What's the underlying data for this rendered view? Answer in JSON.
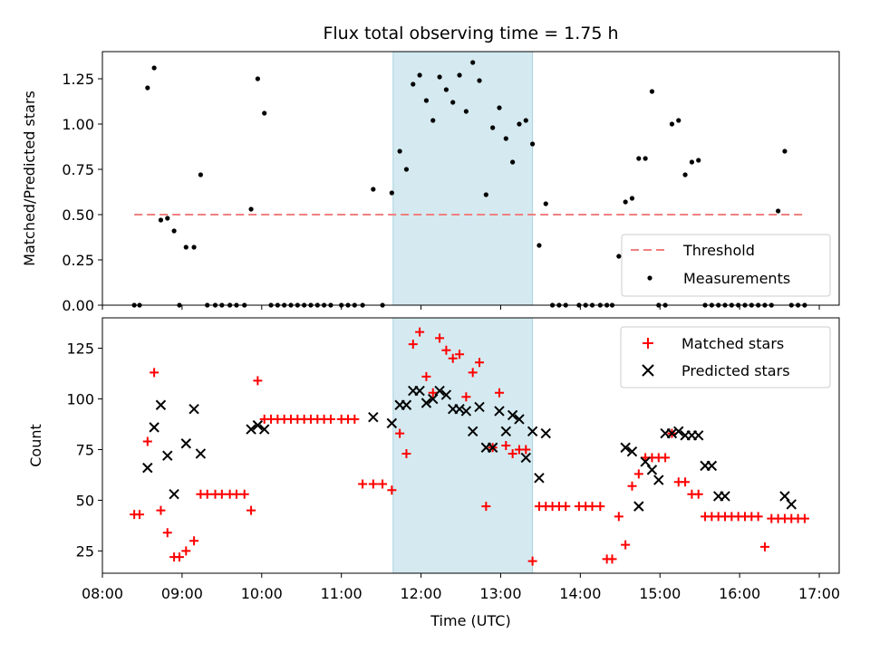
{
  "chart_data": [
    {
      "type": "scatter",
      "title": "Flux total observing time = 1.75 h",
      "ylabel": "Matched/Predicted stars",
      "xlim": [
        "08:00",
        "17:15"
      ],
      "ylim": [
        0,
        1.4
      ],
      "yticks": [
        "0.00",
        "0.25",
        "0.50",
        "0.75",
        "1.00",
        "1.25"
      ],
      "grid": false,
      "legend_position": "lower-right",
      "shaded_interval": {
        "start": "11:39",
        "end": "13:24",
        "color": "#d4eaf0"
      },
      "series": [
        {
          "name": "Threshold",
          "style": "dashed-line",
          "color": "#f08080",
          "x": [
            "08:24",
            "16:50"
          ],
          "y": [
            0.5,
            0.5
          ]
        },
        {
          "name": "Measurements",
          "style": "dot",
          "color": "#000000",
          "x": [
            "08:24",
            "08:28",
            "08:34",
            "08:39",
            "08:44",
            "08:49",
            "08:54",
            "08:58",
            "09:03",
            "09:09",
            "09:14",
            "09:19",
            "09:25",
            "09:30",
            "09:36",
            "09:41",
            "09:47",
            "09:52",
            "09:57",
            "10:02",
            "10:07",
            "10:12",
            "10:17",
            "10:22",
            "10:27",
            "10:32",
            "10:37",
            "10:42",
            "10:47",
            "10:52",
            "11:00",
            "11:05",
            "11:10",
            "11:16",
            "11:24",
            "11:31",
            "11:38",
            "11:44",
            "11:49",
            "11:54",
            "11:59",
            "12:04",
            "12:09",
            "12:14",
            "12:19",
            "12:24",
            "12:29",
            "12:34",
            "12:39",
            "12:44",
            "12:49",
            "12:54",
            "12:59",
            "13:04",
            "13:09",
            "13:14",
            "13:19",
            "13:24",
            "13:29",
            "13:34",
            "13:39",
            "13:44",
            "13:49",
            "13:59",
            "14:04",
            "14:09",
            "14:15",
            "14:20",
            "14:24",
            "14:29",
            "14:34",
            "14:39",
            "14:44",
            "14:49",
            "14:54",
            "14:59",
            "15:04",
            "15:09",
            "15:14",
            "15:19",
            "15:24",
            "15:29",
            "15:34",
            "15:39",
            "15:44",
            "15:49",
            "15:54",
            "15:59",
            "16:04",
            "16:09",
            "16:14",
            "16:19",
            "16:24",
            "16:29",
            "16:34",
            "16:39",
            "16:44",
            "16:49"
          ],
          "y": [
            0,
            0,
            1.2,
            1.31,
            0.47,
            0.48,
            0.41,
            0,
            0.32,
            0.32,
            0.72,
            0,
            0,
            0,
            0,
            0,
            0,
            0.53,
            1.25,
            1.06,
            0,
            0,
            0,
            0,
            0,
            0,
            0,
            0,
            0,
            0,
            0,
            0,
            0,
            0,
            0.64,
            0,
            0.62,
            0.85,
            0.75,
            1.22,
            1.27,
            1.13,
            1.02,
            1.26,
            1.19,
            1.12,
            1.27,
            1.07,
            1.34,
            1.24,
            0.61,
            0.98,
            1.09,
            0.92,
            0.79,
            1,
            1.02,
            0.89,
            0.33,
            0.56,
            0,
            0,
            0,
            0,
            0,
            0,
            0,
            0,
            0,
            0.27,
            0.57,
            0.59,
            0.81,
            0.81,
            1.18,
            0,
            0,
            1,
            1.02,
            0.72,
            0.79,
            0.8,
            0,
            0,
            0,
            0,
            0,
            0,
            0,
            0,
            0,
            0,
            0,
            0.52,
            0.85,
            0,
            0,
            0
          ]
        }
      ]
    },
    {
      "type": "scatter",
      "xlabel": "Time (UTC)",
      "ylabel": "Count",
      "xlim": [
        "08:00",
        "17:15"
      ],
      "ylim": [
        14,
        140
      ],
      "xticks": [
        "08:00",
        "09:00",
        "10:00",
        "11:00",
        "12:00",
        "13:00",
        "14:00",
        "15:00",
        "16:00",
        "17:00"
      ],
      "yticks": [
        "25",
        "50",
        "75",
        "100",
        "125"
      ],
      "grid": false,
      "legend_position": "upper-right",
      "shaded_interval": {
        "start": "11:39",
        "end": "13:24",
        "color": "#d4eaf0"
      },
      "series": [
        {
          "name": "Matched stars",
          "marker": "plus",
          "color": "#ff0000",
          "x": [
            "08:24",
            "08:28",
            "08:34",
            "08:39",
            "08:44",
            "08:49",
            "08:54",
            "08:58",
            "09:03",
            "09:09",
            "09:14",
            "09:19",
            "09:25",
            "09:30",
            "09:36",
            "09:41",
            "09:47",
            "09:52",
            "09:57",
            "10:02",
            "10:07",
            "10:12",
            "10:17",
            "10:22",
            "10:27",
            "10:32",
            "10:37",
            "10:42",
            "10:47",
            "10:52",
            "11:00",
            "11:05",
            "11:10",
            "11:16",
            "11:24",
            "11:31",
            "11:38",
            "11:44",
            "11:49",
            "11:54",
            "11:59",
            "12:04",
            "12:09",
            "12:14",
            "12:19",
            "12:24",
            "12:29",
            "12:34",
            "12:39",
            "12:44",
            "12:49",
            "12:54",
            "12:59",
            "13:04",
            "13:09",
            "13:14",
            "13:19",
            "13:24",
            "13:29",
            "13:34",
            "13:39",
            "13:44",
            "13:49",
            "13:59",
            "14:04",
            "14:09",
            "14:15",
            "14:20",
            "14:24",
            "14:29",
            "14:34",
            "14:39",
            "14:44",
            "14:49",
            "14:54",
            "14:59",
            "15:04",
            "15:09",
            "15:14",
            "15:19",
            "15:24",
            "15:29",
            "15:34",
            "15:39",
            "15:44",
            "15:49",
            "15:54",
            "15:59",
            "16:04",
            "16:09",
            "16:14",
            "16:19",
            "16:24",
            "16:29",
            "16:34",
            "16:39",
            "16:44",
            "16:49"
          ],
          "y": [
            43,
            43,
            79,
            113,
            45,
            34,
            22,
            22,
            25,
            30,
            53,
            53,
            53,
            53,
            53,
            53,
            53,
            45,
            109,
            90,
            90,
            90,
            90,
            90,
            90,
            90,
            90,
            90,
            90,
            90,
            90,
            90,
            90,
            58,
            58,
            58,
            55,
            83,
            73,
            127,
            133,
            111,
            103,
            130,
            124,
            120,
            122,
            101,
            113,
            118,
            47,
            76,
            103,
            77,
            73,
            75,
            75,
            20,
            47,
            47,
            47,
            47,
            47,
            47,
            47,
            47,
            47,
            21,
            21,
            42,
            28,
            57,
            63,
            71,
            71,
            71,
            71,
            83,
            59,
            59,
            53,
            53,
            42,
            42,
            42,
            42,
            42,
            42,
            42,
            42,
            42,
            27,
            41,
            41,
            41,
            41,
            41,
            41
          ]
        },
        {
          "name": "Predicted stars",
          "marker": "x",
          "color": "#000000",
          "x": [
            "08:34",
            "08:39",
            "08:44",
            "08:49",
            "08:54",
            "09:03",
            "09:09",
            "09:14",
            "09:52",
            "09:57",
            "10:02",
            "11:24",
            "11:38",
            "11:44",
            "11:49",
            "11:54",
            "11:59",
            "12:04",
            "12:09",
            "12:14",
            "12:19",
            "12:24",
            "12:29",
            "12:34",
            "12:39",
            "12:44",
            "12:49",
            "12:54",
            "12:59",
            "13:04",
            "13:09",
            "13:14",
            "13:19",
            "13:24",
            "13:29",
            "13:34",
            "14:34",
            "14:39",
            "14:44",
            "14:49",
            "14:54",
            "14:59",
            "15:04",
            "15:09",
            "15:14",
            "15:19",
            "15:24",
            "15:29",
            "15:34",
            "15:39",
            "15:44",
            "15:49",
            "16:34",
            "16:39"
          ],
          "y": [
            66,
            86,
            97,
            72,
            53,
            78,
            95,
            73,
            85,
            87,
            85,
            91,
            88,
            97,
            97,
            104,
            104,
            98,
            100,
            104,
            102,
            95,
            95,
            94,
            84,
            96,
            76,
            76,
            94,
            84,
            92,
            90,
            71,
            84,
            61,
            83,
            76,
            74,
            47,
            69,
            65,
            60,
            83,
            83,
            84,
            82,
            82,
            82,
            67,
            67,
            52,
            52,
            52,
            48
          ]
        }
      ]
    }
  ]
}
